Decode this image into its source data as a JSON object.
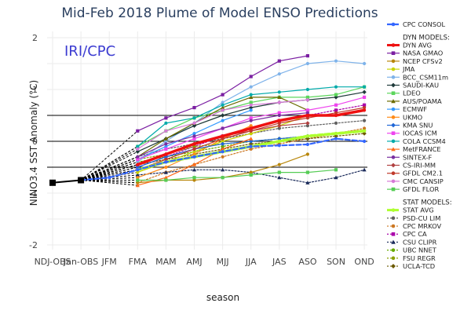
{
  "chart_data": {
    "type": "line",
    "title": "Mid-Feb 2018 Plume of Model ENSO Predictions",
    "watermark": "IRI/CPC",
    "xlabel": "season",
    "ylabel": "NINO3.4 SST Anomaly (°C)",
    "ylim": [
      -2,
      2
    ],
    "yticks": [
      -2,
      -1,
      0,
      1,
      2
    ],
    "reference_lines": [
      -0.5,
      0,
      0.5
    ],
    "grid": true,
    "legend_position": "right",
    "categories": [
      "NDJ-OBS",
      "Jan-OBS",
      "JFM",
      "FMA",
      "MAM",
      "AMJ",
      "MJJ",
      "JJA",
      "JAS",
      "ASO",
      "SON",
      "OND"
    ],
    "observed": {
      "name": "OBS",
      "color": "#000000",
      "values": [
        -0.8,
        -0.75,
        null,
        null,
        null,
        null,
        null,
        null,
        null,
        null,
        null,
        null
      ]
    },
    "legend_header_consol": "CPC CONSOL",
    "legend_header_dyn": "DYN MODELS:",
    "legend_header_stat": "STAT MODELS:",
    "consol": {
      "name": "CPC CONSOL",
      "color": "#3366ff",
      "dash": "dashed",
      "values": [
        null,
        -0.75,
        -0.7,
        -0.55,
        -0.4,
        -0.3,
        -0.2,
        -0.1,
        -0.08,
        -0.06,
        0.05,
        0.0
      ]
    },
    "dyn_series": [
      {
        "name": "DYN AVG",
        "color": "#ee1111",
        "width": 3.5,
        "dash": "solid",
        "marker": "circle",
        "values": [
          null,
          null,
          null,
          -0.45,
          -0.25,
          -0.05,
          0.1,
          0.25,
          0.4,
          0.5,
          0.5,
          0.6
        ]
      },
      {
        "name": "NASA GMAO",
        "color": "#7b1fa2",
        "width": 1.2,
        "dash": "solid",
        "marker": "square",
        "values": [
          null,
          null,
          null,
          0.2,
          0.45,
          0.65,
          0.9,
          1.25,
          1.55,
          1.65,
          null,
          null
        ]
      },
      {
        "name": "NCEP CFSv2",
        "color": "#b8860b",
        "width": 1.2,
        "dash": "solid",
        "marker": "circle",
        "values": [
          null,
          null,
          null,
          -0.8,
          -0.75,
          -0.75,
          -0.7,
          -0.6,
          -0.45,
          -0.25,
          null,
          null
        ]
      },
      {
        "name": "JMA",
        "color": "#c9d400",
        "width": 1.2,
        "dash": "solid",
        "marker": "circle",
        "values": [
          null,
          null,
          null,
          -0.6,
          -0.4,
          -0.2,
          0.0,
          0.15,
          0.3,
          0.5,
          null,
          null
        ]
      },
      {
        "name": "BCC_CSM11m",
        "color": "#7fb3ea",
        "width": 1.2,
        "dash": "solid",
        "marker": "circle",
        "values": [
          null,
          null,
          null,
          -0.4,
          0.0,
          0.35,
          0.75,
          1.05,
          1.3,
          1.5,
          1.55,
          1.5
        ]
      },
      {
        "name": "SAUDI-KAU",
        "color": "#1f3a3a",
        "width": 1.2,
        "dash": "solid",
        "marker": "diamond",
        "values": [
          null,
          null,
          null,
          -0.2,
          0.05,
          0.3,
          0.5,
          0.65,
          0.75,
          0.8,
          0.85,
          0.95
        ]
      },
      {
        "name": "LDEO",
        "color": "#5cd65c",
        "width": 1.2,
        "dash": "solid",
        "marker": "square",
        "values": [
          null,
          null,
          null,
          -0.1,
          0.2,
          0.45,
          0.6,
          0.75,
          0.85,
          0.85,
          0.9,
          1.05
        ]
      },
      {
        "name": "AUS/POAMA",
        "color": "#6b6b00",
        "width": 1.2,
        "dash": "solid",
        "marker": "triangle",
        "values": [
          null,
          null,
          null,
          -0.3,
          0.05,
          0.35,
          0.65,
          0.85,
          0.85,
          0.6,
          null,
          null
        ]
      },
      {
        "name": "ECMWF",
        "color": "#3399ff",
        "width": 1.2,
        "dash": "solid",
        "marker": "circle",
        "values": [
          null,
          null,
          null,
          -0.35,
          -0.1,
          0.15,
          0.4,
          0.6,
          null,
          null,
          null,
          null
        ]
      },
      {
        "name": "UKMO",
        "color": "#ff8c1a",
        "width": 1.2,
        "dash": "solid",
        "marker": "circle",
        "values": [
          null,
          null,
          null,
          -0.7,
          -0.5,
          -0.25,
          0.05,
          0.3,
          null,
          null,
          null,
          null
        ]
      },
      {
        "name": "KMA SNU",
        "color": "#1f66d6",
        "width": 1.2,
        "dash": "solid",
        "marker": "diamond",
        "values": [
          null,
          null,
          null,
          -0.5,
          -0.3,
          -0.15,
          -0.05,
          0.0,
          0.05,
          0.1,
          null,
          null
        ]
      },
      {
        "name": "IOCAS ICM",
        "color": "#ee44ee",
        "width": 1.2,
        "dash": "solid",
        "marker": "square",
        "values": [
          null,
          null,
          null,
          -0.35,
          -0.15,
          0.05,
          0.25,
          0.45,
          0.55,
          0.6,
          0.7,
          0.85
        ]
      },
      {
        "name": "COLA CCSM4",
        "color": "#00aaaa",
        "width": 1.2,
        "dash": "solid",
        "marker": "circle",
        "values": [
          null,
          null,
          null,
          -0.1,
          0.35,
          0.45,
          0.7,
          0.9,
          0.95,
          1.0,
          1.05,
          1.05
        ]
      },
      {
        "name": "MetFRANCE",
        "color": "#ff6a1a",
        "width": 1.2,
        "dash": "solid",
        "marker": "triangle",
        "values": [
          null,
          null,
          null,
          -0.85,
          -0.7,
          -0.45,
          -0.15,
          0.05,
          null,
          null,
          null,
          null
        ]
      },
      {
        "name": "SINTEX-F",
        "color": "#7a2fa0",
        "width": 1.2,
        "dash": "solid",
        "marker": "circle",
        "values": [
          null,
          null,
          null,
          -0.3,
          -0.05,
          0.1,
          0.25,
          0.4,
          0.5,
          0.55,
          null,
          null
        ]
      },
      {
        "name": "CS-IRI-MM",
        "color": "#b04040",
        "width": 1.2,
        "dash": "solid",
        "marker": "diamond",
        "values": [
          null,
          null,
          null,
          -0.45,
          -0.25,
          -0.05,
          0.1,
          0.2,
          0.3,
          0.35,
          null,
          null
        ]
      },
      {
        "name": "GFDL CM2.1",
        "color": "#c0392b",
        "width": 1.2,
        "dash": "solid",
        "marker": "circle",
        "values": [
          null,
          null,
          null,
          -0.55,
          -0.35,
          -0.15,
          0.05,
          0.2,
          0.35,
          0.45,
          0.55,
          0.65
        ]
      },
      {
        "name": "CMC CANSIP",
        "color": "#d67ad6",
        "width": 1.2,
        "dash": "solid",
        "marker": "circle",
        "values": [
          null,
          null,
          null,
          -0.15,
          0.2,
          0.35,
          0.6,
          0.7,
          0.75,
          0.8,
          null,
          null
        ]
      },
      {
        "name": "GFDL FLOR",
        "color": "#55cc55",
        "width": 1.2,
        "dash": "solid",
        "marker": "square",
        "values": [
          null,
          null,
          null,
          -0.75,
          -0.75,
          -0.7,
          -0.7,
          -0.65,
          -0.6,
          -0.6,
          -0.55,
          null
        ]
      }
    ],
    "stat_series": [
      {
        "name": "STAT AVG",
        "color": "#adff2f",
        "width": 3.5,
        "dash": "dashed",
        "marker": "circle",
        "values": [
          null,
          null,
          null,
          -0.55,
          -0.4,
          -0.3,
          -0.2,
          -0.1,
          0.0,
          0.1,
          0.15,
          0.2
        ]
      },
      {
        "name": "PSD-CU LIM",
        "color": "#606060",
        "width": 1.2,
        "dash": "dotted",
        "marker": "circle",
        "values": [
          null,
          null,
          null,
          -0.3,
          -0.15,
          -0.05,
          0.05,
          0.15,
          0.25,
          0.3,
          0.35,
          0.4
        ]
      },
      {
        "name": "CPC MRKOV",
        "color": "#cc7722",
        "width": 1.2,
        "dash": "dotted",
        "marker": "circle",
        "values": [
          null,
          null,
          null,
          -0.8,
          -0.6,
          -0.45,
          -0.3,
          -0.15,
          -0.05,
          0.05,
          0.15,
          0.25
        ]
      },
      {
        "name": "CPC CA",
        "color": "#aa00aa",
        "width": 1.2,
        "dash": "dotted",
        "marker": "square",
        "values": [
          null,
          null,
          null,
          -0.5,
          -0.3,
          -0.1,
          0.1,
          0.25,
          0.4,
          0.5,
          0.6,
          0.7
        ]
      },
      {
        "name": "CSU CLIPR",
        "color": "#1a2a5a",
        "width": 1.2,
        "dash": "dotted",
        "marker": "triangle",
        "values": [
          null,
          null,
          null,
          -0.65,
          -0.6,
          -0.55,
          -0.55,
          -0.6,
          -0.7,
          -0.8,
          -0.7,
          -0.55
        ]
      },
      {
        "name": "UBC NNET",
        "color": "#66aa00",
        "width": 1.2,
        "dash": "dotted",
        "marker": "circle",
        "values": [
          null,
          null,
          null,
          -0.4,
          -0.3,
          -0.2,
          -0.1,
          0.0,
          0.05,
          0.1,
          0.15,
          0.2
        ]
      },
      {
        "name": "FSU REGR",
        "color": "#8aa000",
        "width": 1.2,
        "dash": "dotted",
        "marker": "circle",
        "values": [
          null,
          null,
          null,
          -0.35,
          -0.25,
          -0.1,
          -0.05,
          0.0,
          0.05,
          0.1,
          0.15,
          0.2
        ]
      },
      {
        "name": "UCLA-TCD",
        "color": "#6b5a00",
        "width": 1.2,
        "dash": "dotted",
        "marker": "diamond",
        "values": [
          null,
          null,
          null,
          -0.45,
          -0.35,
          -0.25,
          -0.15,
          -0.05,
          0.0,
          0.05,
          0.1,
          0.15
        ]
      }
    ]
  }
}
